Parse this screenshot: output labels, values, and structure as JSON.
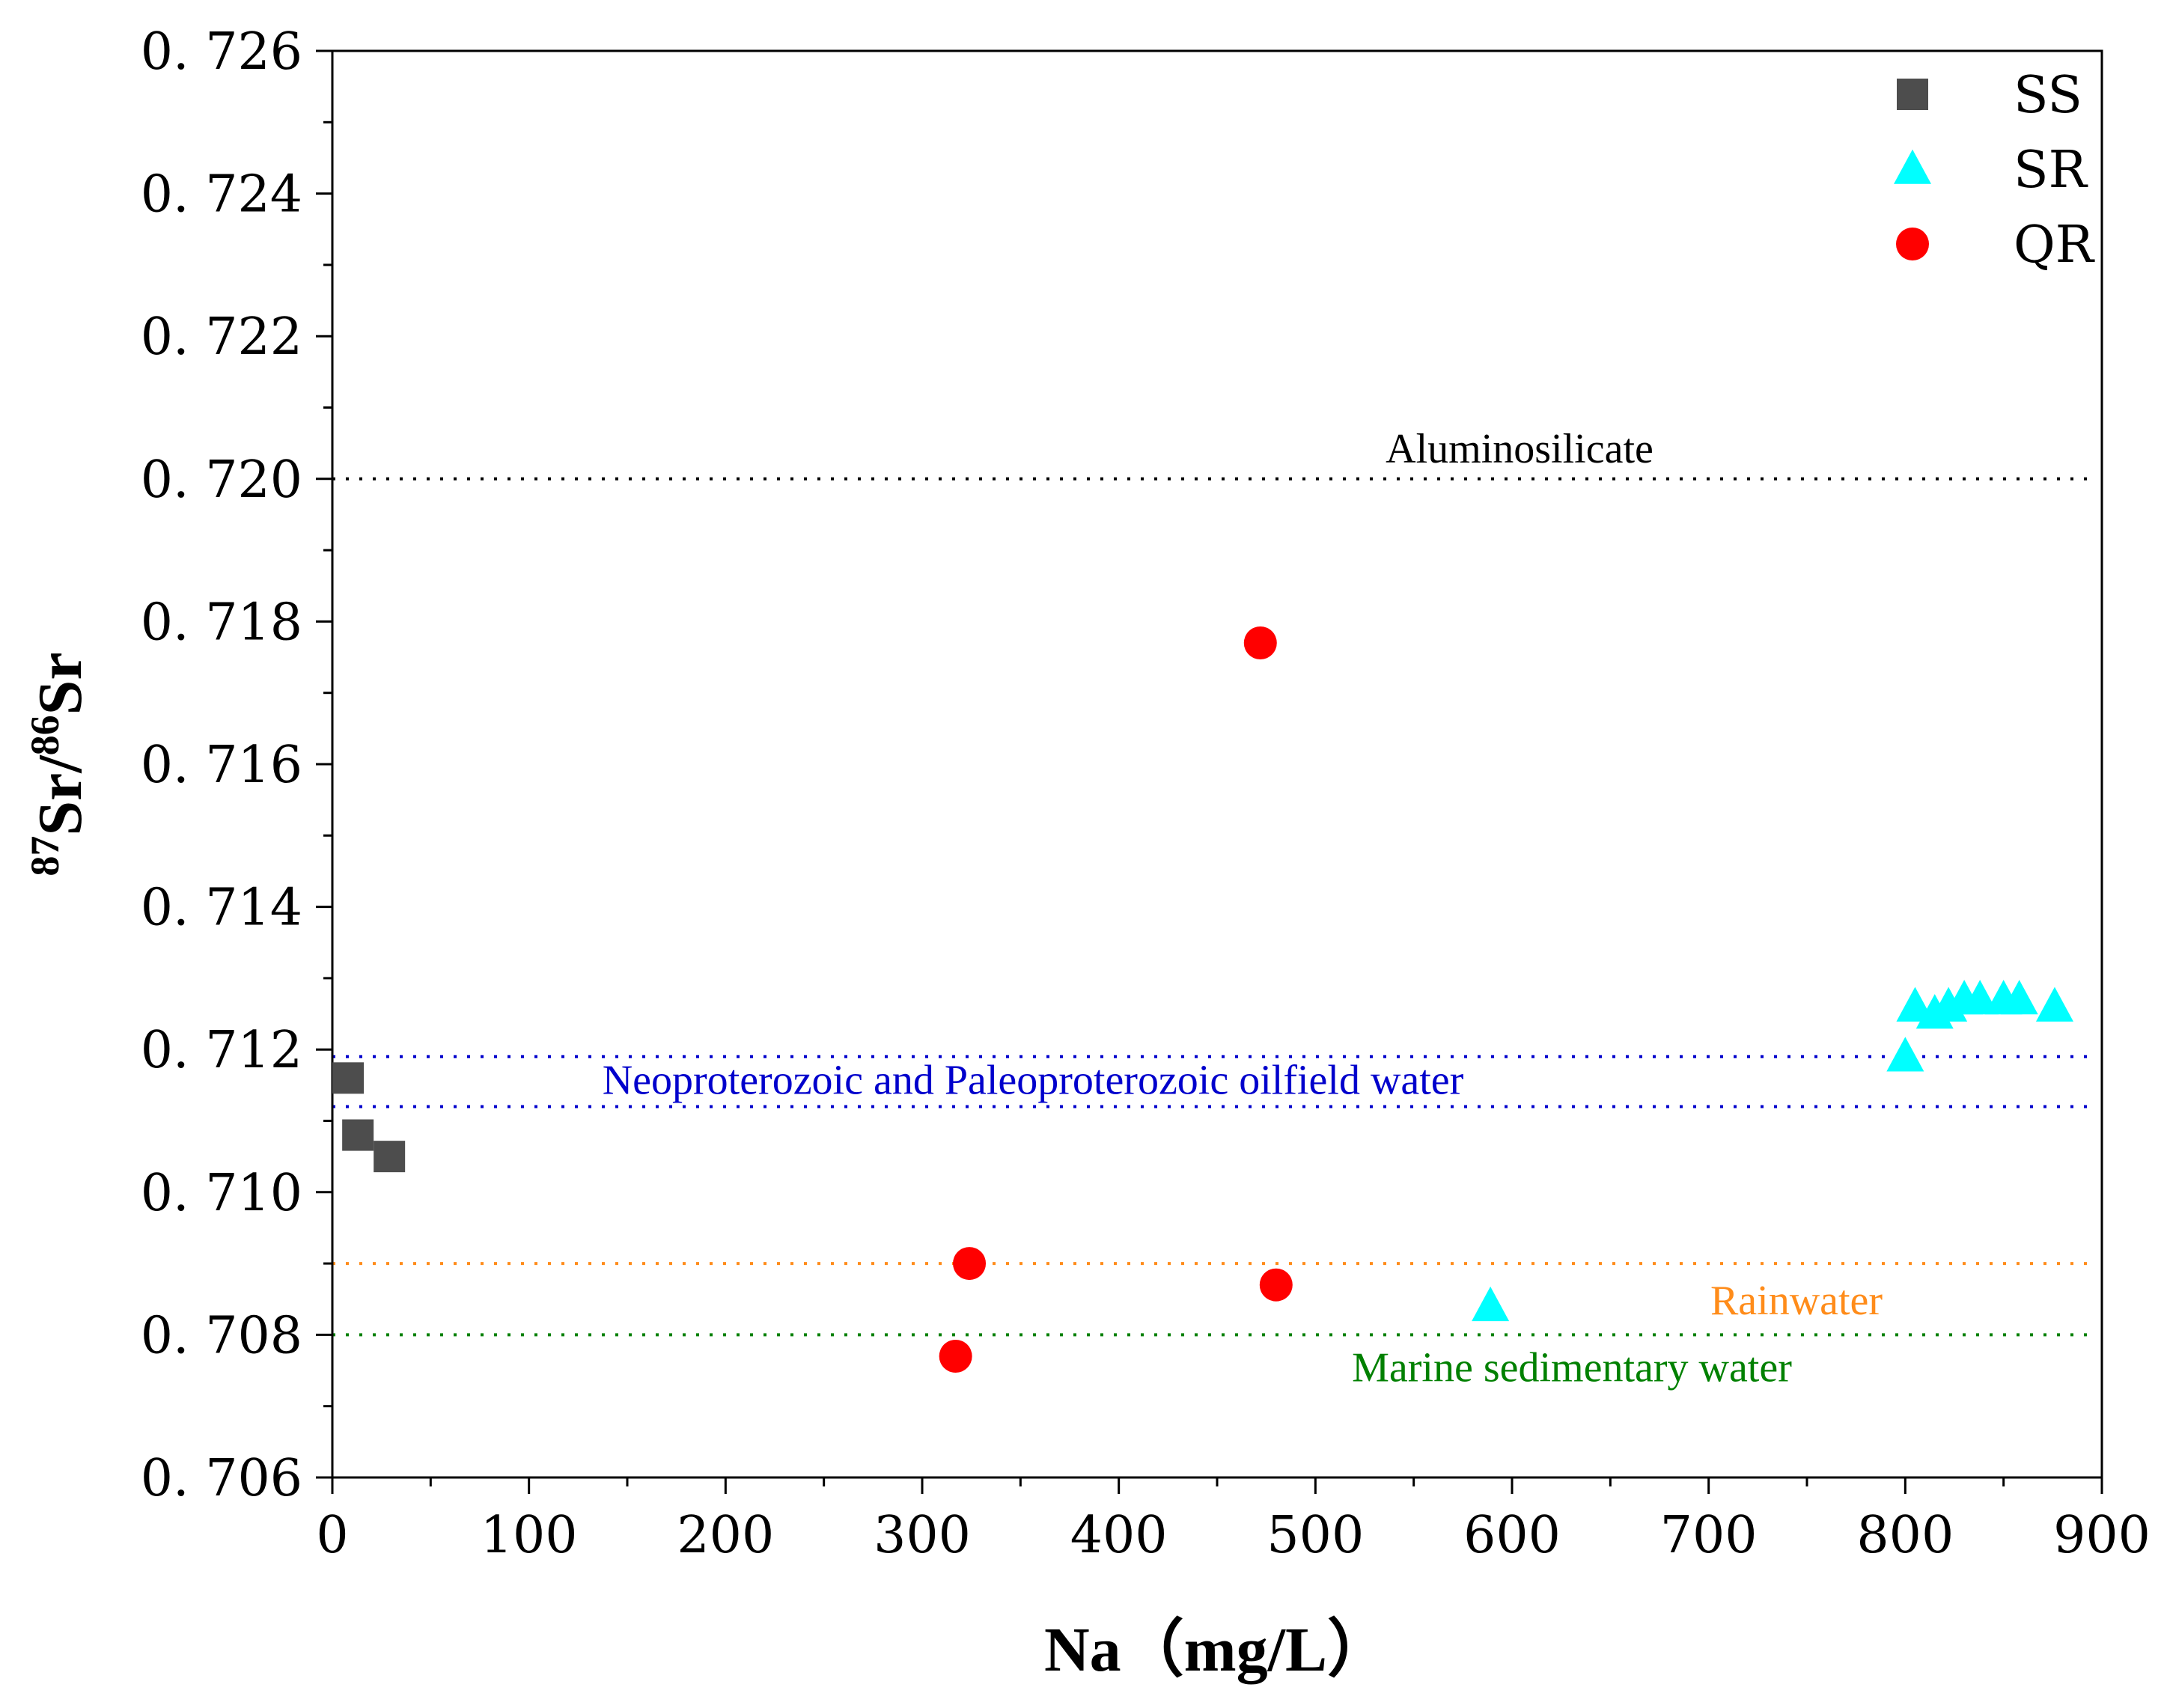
{
  "chart_data": {
    "type": "scatter",
    "xlabel": "Na（mg/L）",
    "ylabel": {
      "sup1": "87",
      "base1": "Sr/",
      "sup2": "86",
      "base2": "Sr"
    },
    "xlim": [
      0,
      900
    ],
    "ylim": [
      0.706,
      0.726
    ],
    "x_ticks": [
      0,
      100,
      200,
      300,
      400,
      500,
      600,
      700,
      800,
      900
    ],
    "x_tick_labels": [
      "0",
      "100",
      "200",
      "300",
      "400",
      "500",
      "600",
      "700",
      "800",
      "900"
    ],
    "y_ticks": [
      0.706,
      0.708,
      0.71,
      0.712,
      0.714,
      0.716,
      0.718,
      0.72,
      0.722,
      0.724,
      0.726
    ],
    "y_tick_labels": [
      "0. 706",
      "0. 708",
      "0. 710",
      "0. 712",
      "0. 714",
      "0. 716",
      "0. 718",
      "0. 720",
      "0. 722",
      "0. 724",
      "0. 726"
    ],
    "grid": false,
    "legend_position": "top-right",
    "series": [
      {
        "name": "SS",
        "marker": "square",
        "color": "#4d4d4d",
        "points": [
          [
            8,
            0.7116
          ],
          [
            13,
            0.7108
          ],
          [
            29,
            0.7105
          ]
        ]
      },
      {
        "name": "SR",
        "marker": "triangle",
        "color": "#00ffff",
        "points": [
          [
            589,
            0.7084
          ],
          [
            800,
            0.7119
          ],
          [
            805,
            0.7126
          ],
          [
            815,
            0.7125
          ],
          [
            822,
            0.7126
          ],
          [
            830,
            0.7127
          ],
          [
            838,
            0.7127
          ],
          [
            850,
            0.7127
          ],
          [
            858,
            0.7127
          ],
          [
            876,
            0.7126
          ]
        ]
      },
      {
        "name": "QR",
        "marker": "circle",
        "color": "#ff0000",
        "points": [
          [
            472,
            0.7177
          ],
          [
            324,
            0.709
          ],
          [
            480,
            0.7087
          ],
          [
            317,
            0.7077
          ]
        ]
      }
    ],
    "reference_lines": [
      {
        "label": "Aluminosilicate",
        "y": 0.72,
        "color": "#000000"
      },
      {
        "label": "Neoproterozoic and Paleoproterozoic oilfield water",
        "y": 0.7119,
        "color": "#0000cc"
      },
      {
        "label": "",
        "y": 0.7112,
        "color": "#0000cc"
      },
      {
        "label": "Rainwater",
        "y": 0.709,
        "color": "#ff8c1a"
      },
      {
        "label": "Marine sedimentary water",
        "y": 0.708,
        "color": "#008000"
      }
    ]
  }
}
